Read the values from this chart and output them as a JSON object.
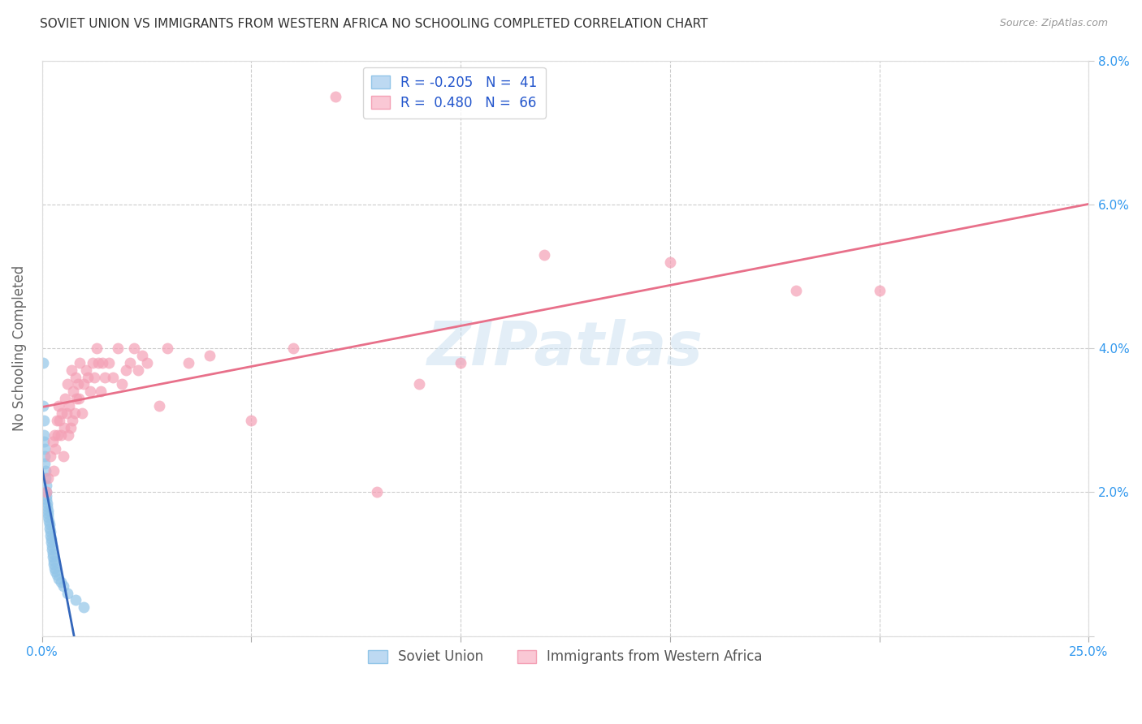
{
  "title": "SOVIET UNION VS IMMIGRANTS FROM WESTERN AFRICA NO SCHOOLING COMPLETED CORRELATION CHART",
  "source": "Source: ZipAtlas.com",
  "ylabel": "No Schooling Completed",
  "xlim": [
    0,
    0.25
  ],
  "ylim": [
    0,
    0.08
  ],
  "xticks": [
    0.0,
    0.05,
    0.1,
    0.15,
    0.2,
    0.25
  ],
  "yticks": [
    0.0,
    0.02,
    0.04,
    0.06,
    0.08
  ],
  "series1_label": "Soviet Union",
  "series2_label": "Immigrants from Western Africa",
  "series1_color": "#92C5E8",
  "series2_color": "#F4A0B5",
  "trend1_color": "#3366BB",
  "trend2_color": "#E8708A",
  "background_color": "#FFFFFF",
  "watermark": "ZIPatlas",
  "soviet_x": [
    0.0002,
    0.0003,
    0.0004,
    0.0005,
    0.0005,
    0.0006,
    0.0007,
    0.0007,
    0.0008,
    0.0009,
    0.001,
    0.001,
    0.0011,
    0.0011,
    0.0012,
    0.0013,
    0.0014,
    0.0014,
    0.0015,
    0.0016,
    0.0017,
    0.0018,
    0.0019,
    0.002,
    0.0021,
    0.0022,
    0.0023,
    0.0024,
    0.0025,
    0.0026,
    0.0027,
    0.0028,
    0.003,
    0.0032,
    0.0035,
    0.004,
    0.0045,
    0.005,
    0.006,
    0.008,
    0.01
  ],
  "soviet_y": [
    0.038,
    0.032,
    0.03,
    0.028,
    0.027,
    0.026,
    0.025,
    0.024,
    0.023,
    0.022,
    0.021,
    0.02,
    0.0195,
    0.019,
    0.0185,
    0.018,
    0.0175,
    0.017,
    0.0165,
    0.016,
    0.0155,
    0.015,
    0.0145,
    0.014,
    0.0135,
    0.013,
    0.0125,
    0.012,
    0.0115,
    0.011,
    0.0105,
    0.01,
    0.0095,
    0.009,
    0.0085,
    0.008,
    0.0075,
    0.007,
    0.006,
    0.005,
    0.004
  ],
  "wafr_x": [
    0.001,
    0.0015,
    0.002,
    0.0025,
    0.0028,
    0.003,
    0.0032,
    0.0035,
    0.0038,
    0.004,
    0.0042,
    0.0045,
    0.0048,
    0.005,
    0.0052,
    0.0055,
    0.0058,
    0.006,
    0.0062,
    0.0065,
    0.0068,
    0.007,
    0.0072,
    0.0075,
    0.0078,
    0.008,
    0.0082,
    0.0085,
    0.0088,
    0.009,
    0.0095,
    0.01,
    0.0105,
    0.011,
    0.0115,
    0.012,
    0.0125,
    0.013,
    0.0135,
    0.014,
    0.0145,
    0.015,
    0.016,
    0.017,
    0.018,
    0.019,
    0.02,
    0.021,
    0.022,
    0.023,
    0.024,
    0.025,
    0.028,
    0.03,
    0.035,
    0.04,
    0.05,
    0.06,
    0.09,
    0.12,
    0.15,
    0.18,
    0.2,
    0.07,
    0.08,
    0.1
  ],
  "wafr_y": [
    0.02,
    0.022,
    0.025,
    0.027,
    0.023,
    0.028,
    0.026,
    0.03,
    0.028,
    0.032,
    0.03,
    0.028,
    0.031,
    0.025,
    0.029,
    0.033,
    0.031,
    0.035,
    0.028,
    0.032,
    0.029,
    0.037,
    0.03,
    0.034,
    0.031,
    0.036,
    0.033,
    0.035,
    0.033,
    0.038,
    0.031,
    0.035,
    0.037,
    0.036,
    0.034,
    0.038,
    0.036,
    0.04,
    0.038,
    0.034,
    0.038,
    0.036,
    0.038,
    0.036,
    0.04,
    0.035,
    0.037,
    0.038,
    0.04,
    0.037,
    0.039,
    0.038,
    0.032,
    0.04,
    0.038,
    0.039,
    0.03,
    0.04,
    0.035,
    0.053,
    0.052,
    0.048,
    0.048,
    0.075,
    0.02,
    0.038
  ]
}
